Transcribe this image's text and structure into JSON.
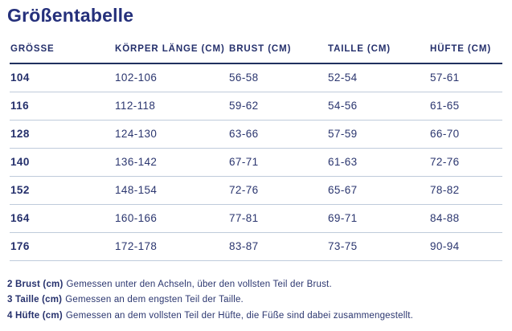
{
  "page": {
    "title": "Größentabelle"
  },
  "colors": {
    "text_navy": "#2b366f",
    "heading_navy": "#25307b",
    "header_rule": "#20305e",
    "row_rule": "#bfcbdb",
    "background": "#ffffff"
  },
  "table": {
    "columns": [
      "GRÖSSE",
      "KÖRPER LÄNGE (CM)",
      "BRUST (CM)",
      "TAILLE (CM)",
      "HÜFTE (CM)"
    ],
    "rows": [
      {
        "size": "104",
        "koerper_laenge": "102-106",
        "brust": "56-58",
        "taille": "52-54",
        "huefte": "57-61"
      },
      {
        "size": "116",
        "koerper_laenge": "112-118",
        "brust": "59-62",
        "taille": "54-56",
        "huefte": "61-65"
      },
      {
        "size": "128",
        "koerper_laenge": "124-130",
        "brust": "63-66",
        "taille": "57-59",
        "huefte": "66-70"
      },
      {
        "size": "140",
        "koerper_laenge": "136-142",
        "brust": "67-71",
        "taille": "61-63",
        "huefte": "72-76"
      },
      {
        "size": "152",
        "koerper_laenge": "148-154",
        "brust": "72-76",
        "taille": "65-67",
        "huefte": "78-82"
      },
      {
        "size": "164",
        "koerper_laenge": "160-166",
        "brust": "77-81",
        "taille": "69-71",
        "huefte": "84-88"
      },
      {
        "size": "176",
        "koerper_laenge": "172-178",
        "brust": "83-87",
        "taille": "73-75",
        "huefte": "90-94"
      }
    ]
  },
  "footnotes": [
    {
      "label": "2 Brust (cm)",
      "text": "Gemessen unter den Achseln, über den vollsten Teil der Brust."
    },
    {
      "label": "3 Taille (cm)",
      "text": "Gemessen an dem engsten Teil der Taille."
    },
    {
      "label": "4 Hüfte (cm)",
      "text": "Gemessen an dem vollsten Teil der Hüfte, die Füße sind dabei zusammengestellt."
    }
  ]
}
